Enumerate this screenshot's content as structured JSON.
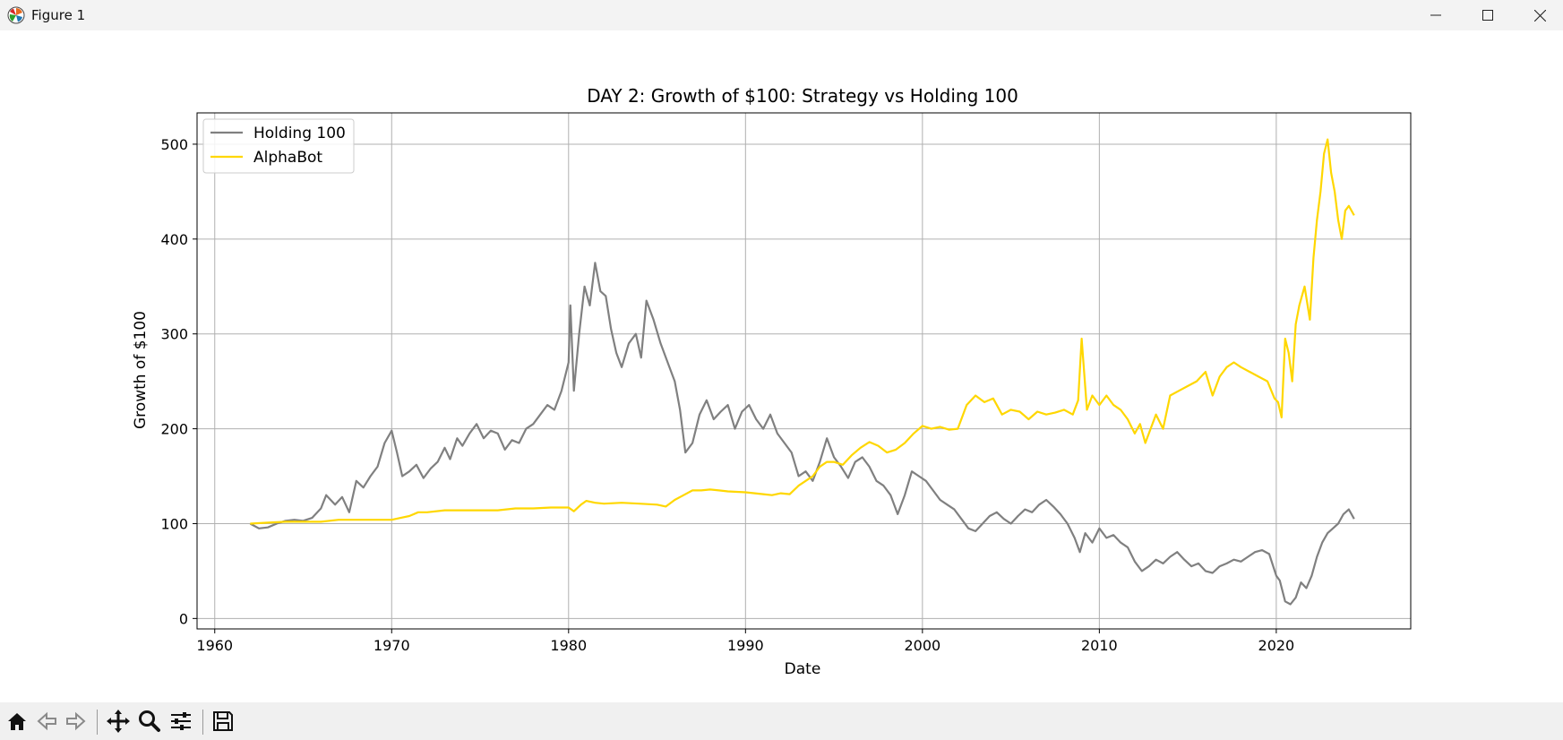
{
  "window": {
    "title": "Figure 1"
  },
  "colors": {
    "holding": "#808080",
    "alphabot": "#FFD700",
    "grid": "#b0b0b0"
  },
  "toolbar": {
    "icons": [
      "home-icon",
      "back-icon",
      "forward-icon",
      "pan-icon",
      "zoom-icon",
      "configure-subplots-icon",
      "save-icon"
    ]
  },
  "chart_data": {
    "type": "line",
    "title": "DAY 2: Growth of $100: Strategy vs Holding 100",
    "xlabel": "Date",
    "ylabel": "Growth of $100",
    "xlim": [
      1959,
      2027.6
    ],
    "ylim": [
      -11,
      533
    ],
    "xticks": [
      1960,
      1970,
      1980,
      1990,
      2000,
      2010,
      2020
    ],
    "yticks": [
      0,
      100,
      200,
      300,
      400,
      500
    ],
    "grid": true,
    "legend_position": "upper-left",
    "series": [
      {
        "name": "Holding 100",
        "color": "#808080",
        "x": [
          1962.0,
          1962.5,
          1963.0,
          1963.5,
          1964.0,
          1964.5,
          1965.0,
          1965.5,
          1966.0,
          1966.3,
          1966.8,
          1967.2,
          1967.6,
          1968.0,
          1968.4,
          1968.8,
          1969.2,
          1969.6,
          1970.0,
          1970.3,
          1970.6,
          1971.0,
          1971.4,
          1971.8,
          1972.2,
          1972.6,
          1973.0,
          1973.3,
          1973.7,
          1974.0,
          1974.4,
          1974.8,
          1975.2,
          1975.6,
          1976.0,
          1976.4,
          1976.8,
          1977.2,
          1977.6,
          1978.0,
          1978.4,
          1978.8,
          1979.2,
          1979.6,
          1980.0,
          1980.1,
          1980.3,
          1980.6,
          1980.9,
          1981.2,
          1981.5,
          1981.8,
          1982.1,
          1982.4,
          1982.7,
          1983.0,
          1983.4,
          1983.8,
          1984.1,
          1984.4,
          1984.8,
          1985.2,
          1985.6,
          1986.0,
          1986.3,
          1986.6,
          1987.0,
          1987.4,
          1987.8,
          1988.2,
          1988.6,
          1989.0,
          1989.4,
          1989.8,
          1990.2,
          1990.6,
          1991.0,
          1991.4,
          1991.8,
          1992.2,
          1992.6,
          1993.0,
          1993.4,
          1993.8,
          1994.2,
          1994.6,
          1995.0,
          1995.4,
          1995.8,
          1996.2,
          1996.6,
          1997.0,
          1997.4,
          1997.8,
          1998.2,
          1998.6,
          1999.0,
          1999.4,
          1999.8,
          2000.2,
          2000.6,
          2001.0,
          2001.4,
          2001.8,
          2002.2,
          2002.6,
          2003.0,
          2003.4,
          2003.8,
          2004.2,
          2004.6,
          2005.0,
          2005.4,
          2005.8,
          2006.2,
          2006.6,
          2007.0,
          2007.4,
          2007.8,
          2008.2,
          2008.6,
          2008.9,
          2009.2,
          2009.6,
          2010.0,
          2010.4,
          2010.8,
          2011.2,
          2011.6,
          2012.0,
          2012.4,
          2012.8,
          2013.2,
          2013.6,
          2014.0,
          2014.4,
          2014.8,
          2015.2,
          2015.6,
          2016.0,
          2016.4,
          2016.8,
          2017.2,
          2017.6,
          2018.0,
          2018.4,
          2018.8,
          2019.2,
          2019.6,
          2020.0,
          2020.2,
          2020.5,
          2020.8,
          2021.1,
          2021.4,
          2021.7,
          2022.0,
          2022.3,
          2022.6,
          2022.9,
          2023.2,
          2023.5,
          2023.8,
          2024.1,
          2024.4
        ],
        "y": [
          100,
          95,
          96,
          100,
          103,
          104,
          103,
          106,
          116,
          130,
          120,
          128,
          112,
          145,
          138,
          150,
          160,
          185,
          198,
          175,
          150,
          155,
          162,
          148,
          158,
          165,
          180,
          168,
          190,
          182,
          195,
          205,
          190,
          198,
          195,
          178,
          188,
          185,
          200,
          205,
          215,
          225,
          220,
          240,
          270,
          330,
          240,
          300,
          350,
          330,
          375,
          345,
          340,
          305,
          280,
          265,
          290,
          300,
          275,
          335,
          315,
          290,
          270,
          250,
          220,
          175,
          185,
          215,
          230,
          210,
          218,
          225,
          200,
          218,
          225,
          210,
          200,
          215,
          195,
          185,
          175,
          150,
          155,
          145,
          165,
          190,
          170,
          160,
          148,
          165,
          170,
          160,
          145,
          140,
          130,
          110,
          130,
          155,
          150,
          145,
          135,
          125,
          120,
          115,
          105,
          95,
          92,
          100,
          108,
          112,
          105,
          100,
          108,
          115,
          112,
          120,
          125,
          118,
          110,
          100,
          85,
          70,
          90,
          80,
          95,
          85,
          88,
          80,
          75,
          60,
          50,
          55,
          62,
          58,
          65,
          70,
          62,
          55,
          58,
          50,
          48,
          55,
          58,
          62,
          60,
          65,
          70,
          72,
          68,
          45,
          40,
          18,
          15,
          22,
          38,
          32,
          45,
          65,
          80,
          90,
          95,
          100,
          110,
          115,
          105
        ]
      },
      {
        "name": "AlphaBot",
        "color": "#FFD700",
        "x": [
          1962.0,
          1963.0,
          1964.0,
          1965.0,
          1966.0,
          1967.0,
          1968.0,
          1969.0,
          1970.0,
          1970.5,
          1971.0,
          1971.5,
          1972.0,
          1973.0,
          1974.0,
          1975.0,
          1976.0,
          1977.0,
          1978.0,
          1979.0,
          1980.0,
          1980.3,
          1980.7,
          1981.0,
          1981.5,
          1982.0,
          1983.0,
          1984.0,
          1985.0,
          1985.5,
          1986.0,
          1986.5,
          1987.0,
          1987.5,
          1988.0,
          1988.5,
          1989.0,
          1990.0,
          1991.0,
          1991.5,
          1992.0,
          1992.5,
          1993.0,
          1993.4,
          1993.8,
          1994.2,
          1994.6,
          1995.0,
          1995.5,
          1996.0,
          1996.5,
          1997.0,
          1997.5,
          1998.0,
          1998.5,
          1999.0,
          1999.5,
          2000.0,
          2000.5,
          2001.0,
          2001.5,
          2002.0,
          2002.5,
          2003.0,
          2003.5,
          2004.0,
          2004.5,
          2005.0,
          2005.5,
          2006.0,
          2006.5,
          2007.0,
          2007.5,
          2008.0,
          2008.5,
          2008.8,
          2009.0,
          2009.3,
          2009.6,
          2010.0,
          2010.4,
          2010.8,
          2011.2,
          2011.6,
          2012.0,
          2012.3,
          2012.6,
          2012.9,
          2013.2,
          2013.6,
          2014.0,
          2014.5,
          2015.0,
          2015.5,
          2016.0,
          2016.4,
          2016.8,
          2017.2,
          2017.6,
          2018.0,
          2018.5,
          2019.0,
          2019.5,
          2019.9,
          2020.1,
          2020.3,
          2020.5,
          2020.7,
          2020.9,
          2021.1,
          2021.3,
          2021.6,
          2021.9,
          2022.1,
          2022.3,
          2022.5,
          2022.7,
          2022.9,
          2023.1,
          2023.3,
          2023.5,
          2023.7,
          2023.9,
          2024.1,
          2024.4
        ],
        "y": [
          100,
          101,
          102,
          102,
          102,
          104,
          104,
          104,
          104,
          106,
          108,
          112,
          112,
          114,
          114,
          114,
          114,
          116,
          116,
          117,
          117,
          113,
          120,
          124,
          122,
          121,
          122,
          121,
          120,
          118,
          125,
          130,
          135,
          135,
          136,
          135,
          134,
          133,
          131,
          130,
          132,
          131,
          140,
          145,
          150,
          160,
          165,
          165,
          162,
          172,
          180,
          186,
          182,
          175,
          178,
          185,
          195,
          203,
          200,
          202,
          199,
          200,
          225,
          235,
          228,
          232,
          215,
          220,
          218,
          210,
          218,
          215,
          217,
          220,
          215,
          230,
          295,
          220,
          235,
          225,
          235,
          225,
          220,
          210,
          195,
          205,
          185,
          200,
          215,
          200,
          235,
          240,
          245,
          250,
          260,
          235,
          255,
          265,
          270,
          265,
          260,
          255,
          250,
          232,
          228,
          212,
          295,
          280,
          250,
          310,
          330,
          350,
          315,
          380,
          420,
          450,
          490,
          505,
          470,
          450,
          420,
          400,
          430,
          435,
          425
        ]
      }
    ]
  }
}
